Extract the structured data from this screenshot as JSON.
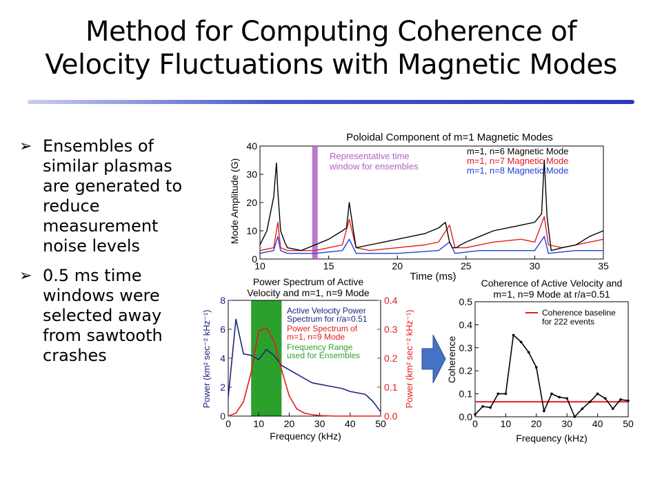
{
  "slide": {
    "title_line1": "Method for Computing Coherence of",
    "title_line2": "Velocity Fluctuations with Magnetic Modes",
    "bullets": [
      "Ensembles of similar plasmas are generated to reduce measurement noise levels",
      "0.5 ms time windows were selected away from sawtooth crashes"
    ],
    "bullet_glyph": "➢",
    "arrow_color": "#4472c4"
  },
  "chart_data": [
    {
      "type": "line",
      "title": "Poloidal Component of m=1 Magnetic Modes",
      "xlabel": "Time (ms)",
      "ylabel": "Mode Amplitude (G)",
      "xlim": [
        10,
        35
      ],
      "ylim": [
        0,
        40
      ],
      "xticks": [
        10,
        15,
        20,
        25,
        30,
        35
      ],
      "yticks": [
        0,
        10,
        20,
        30,
        40
      ],
      "annotation": "Representative time window for ensembles",
      "annotation_color": "#b061c4",
      "highlight_window": [
        13.8,
        14.2
      ],
      "series": [
        {
          "name": "m=1, n=6 Magnetic Mode",
          "color": "#000000",
          "x": [
            10,
            10.5,
            11,
            11.2,
            11.3,
            11.5,
            11.8,
            12,
            13,
            14,
            15,
            16,
            16.3,
            16.5,
            16.8,
            17,
            18,
            19,
            20,
            21,
            22,
            23,
            23.5,
            23.8,
            24,
            24.3,
            24.6,
            25,
            26,
            27,
            28,
            29,
            30,
            30.5,
            30.7,
            30.9,
            31.2,
            32,
            33,
            34,
            35
          ],
          "y": [
            5,
            10,
            22,
            34,
            24,
            10,
            6,
            4,
            3,
            5,
            7,
            10,
            11,
            20,
            10,
            4,
            5,
            6,
            7,
            8,
            9,
            11,
            13,
            6,
            4,
            4,
            5,
            6,
            8,
            10,
            11,
            12,
            13,
            16,
            35,
            15,
            3,
            4,
            5,
            8,
            10
          ]
        },
        {
          "name": "m=1, n=7 Magnetic Mode",
          "color": "#e31a1c",
          "x": [
            10,
            11,
            11.3,
            11.5,
            12,
            13,
            14,
            15,
            16,
            16.5,
            17,
            18,
            20,
            22,
            23,
            23.8,
            24.2,
            25,
            27,
            29,
            30,
            30.7,
            31,
            32,
            34,
            35
          ],
          "y": [
            3,
            4,
            13,
            4,
            3,
            3,
            3,
            4,
            5,
            14,
            4,
            3,
            4,
            5,
            6,
            12,
            4,
            4,
            6,
            7,
            6,
            15,
            5,
            4,
            6,
            7
          ]
        },
        {
          "name": "m=1, n=8 Magnetic Mode",
          "color": "#1f3fd6",
          "x": [
            10,
            11,
            11.3,
            11.5,
            12,
            14,
            16,
            16.5,
            17,
            20,
            23,
            23.8,
            24.2,
            26,
            28,
            30,
            30.7,
            31,
            33,
            35
          ],
          "y": [
            2,
            3,
            8,
            3,
            2,
            2,
            3,
            7,
            2,
            2,
            3,
            6,
            2,
            3,
            3,
            3,
            8,
            2,
            3,
            3
          ]
        }
      ]
    },
    {
      "type": "line",
      "title": "Power Spectrum of Active Velocity and m=1, n=9 Mode",
      "xlabel": "Frequency (kHz)",
      "ylabel": "Power (km² sec⁻² kHz⁻¹)",
      "ylabel_right": "Power (km² sec⁻² kHz⁻¹)",
      "xlim": [
        0,
        50
      ],
      "ylim": [
        0,
        8
      ],
      "ylim_right": [
        0,
        0.4
      ],
      "xticks": [
        0,
        10,
        20,
        30,
        40,
        50
      ],
      "yticks": [
        0,
        2,
        4,
        6,
        8
      ],
      "yticks_right": [
        "0.0",
        "0.1",
        "0.2",
        "0.3",
        "0.4"
      ],
      "band": [
        7.5,
        17.5
      ],
      "band_label": "Frequency Range used for Ensembles",
      "band_color": "#2ca02c",
      "series": [
        {
          "name": "Active Velocity Power Spectrum for r/a=0.51",
          "color": "#1a237e",
          "axis": "left",
          "x": [
            0,
            2.5,
            5,
            7.5,
            10,
            12.5,
            15,
            17.5,
            20,
            22.5,
            25,
            27.5,
            30,
            32.5,
            35,
            37.5,
            40,
            42.5,
            45,
            47.5,
            50
          ],
          "y": [
            1.3,
            6.7,
            4.3,
            4.2,
            3.9,
            4.6,
            4.2,
            3.5,
            3.2,
            2.9,
            2.6,
            2.3,
            2.2,
            2.1,
            2.0,
            1.9,
            1.7,
            1.6,
            1.5,
            1.0,
            0.3
          ]
        },
        {
          "name": "Power Spectrum of m=1, n=9 Mode",
          "color": "#e31a1c",
          "axis": "right",
          "x": [
            0,
            2.5,
            5,
            7.5,
            10,
            12.5,
            15,
            17.5,
            20,
            22.5,
            25,
            27.5,
            30,
            35,
            40,
            45,
            50
          ],
          "y": [
            0.0,
            0.01,
            0.05,
            0.15,
            0.295,
            0.305,
            0.26,
            0.16,
            0.07,
            0.025,
            0.01,
            0.005,
            0.002,
            0.0,
            0.0,
            0.0,
            0.0
          ]
        }
      ]
    },
    {
      "type": "line",
      "title": "Coherence of Active Velocity and m=1, n=9 Mode at r/a=0.51",
      "xlabel": "Frequency (kHz)",
      "ylabel": "Coherence",
      "xlim": [
        0,
        50
      ],
      "ylim": [
        0,
        0.5
      ],
      "xticks": [
        0,
        10,
        20,
        30,
        40,
        50
      ],
      "yticks": [
        "0.0",
        "0.1",
        "0.2",
        "0.3",
        "0.4",
        "0.5"
      ],
      "baseline": 0.065,
      "baseline_label": "Coherence baseline for 222 events",
      "series": [
        {
          "name": "Coherence",
          "color": "#000000",
          "x": [
            0,
            2.5,
            5,
            7.5,
            10,
            12.5,
            15,
            17.5,
            20,
            22.5,
            25,
            27.5,
            30,
            32.5,
            35,
            37.5,
            40,
            42.5,
            45,
            47.5,
            50
          ],
          "y": [
            0.01,
            0.045,
            0.04,
            0.1,
            0.1,
            0.355,
            0.325,
            0.28,
            0.215,
            0.025,
            0.1,
            0.085,
            0.08,
            0.0,
            0.035,
            0.065,
            0.1,
            0.08,
            0.035,
            0.075,
            0.07
          ]
        }
      ]
    }
  ]
}
